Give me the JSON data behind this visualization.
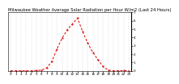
{
  "title": "Milwaukee Weather Average Solar Radiation per Hour W/m2 (Last 24 Hours)",
  "hours": [
    0,
    1,
    2,
    3,
    4,
    5,
    6,
    7,
    8,
    9,
    10,
    11,
    12,
    13,
    14,
    15,
    16,
    17,
    18,
    19,
    20,
    21,
    22,
    23
  ],
  "values": [
    0,
    0,
    0,
    0,
    0,
    2,
    8,
    35,
    110,
    260,
    390,
    490,
    560,
    630,
    470,
    330,
    220,
    130,
    50,
    8,
    0,
    0,
    3,
    0
  ],
  "line_color": "#dd0000",
  "bg_color": "#ffffff",
  "grid_color": "#bbbbbb",
  "ylim": [
    0,
    700
  ],
  "yticks": [
    0,
    100,
    200,
    300,
    400,
    500,
    600,
    700
  ],
  "ytick_labels": [
    "0",
    "1",
    "2",
    "3",
    "4",
    "5",
    "6",
    "7"
  ],
  "title_fontsize": 3.8,
  "tick_fontsize": 3.0,
  "line_width": 0.7,
  "dash_pattern": [
    3,
    2
  ]
}
